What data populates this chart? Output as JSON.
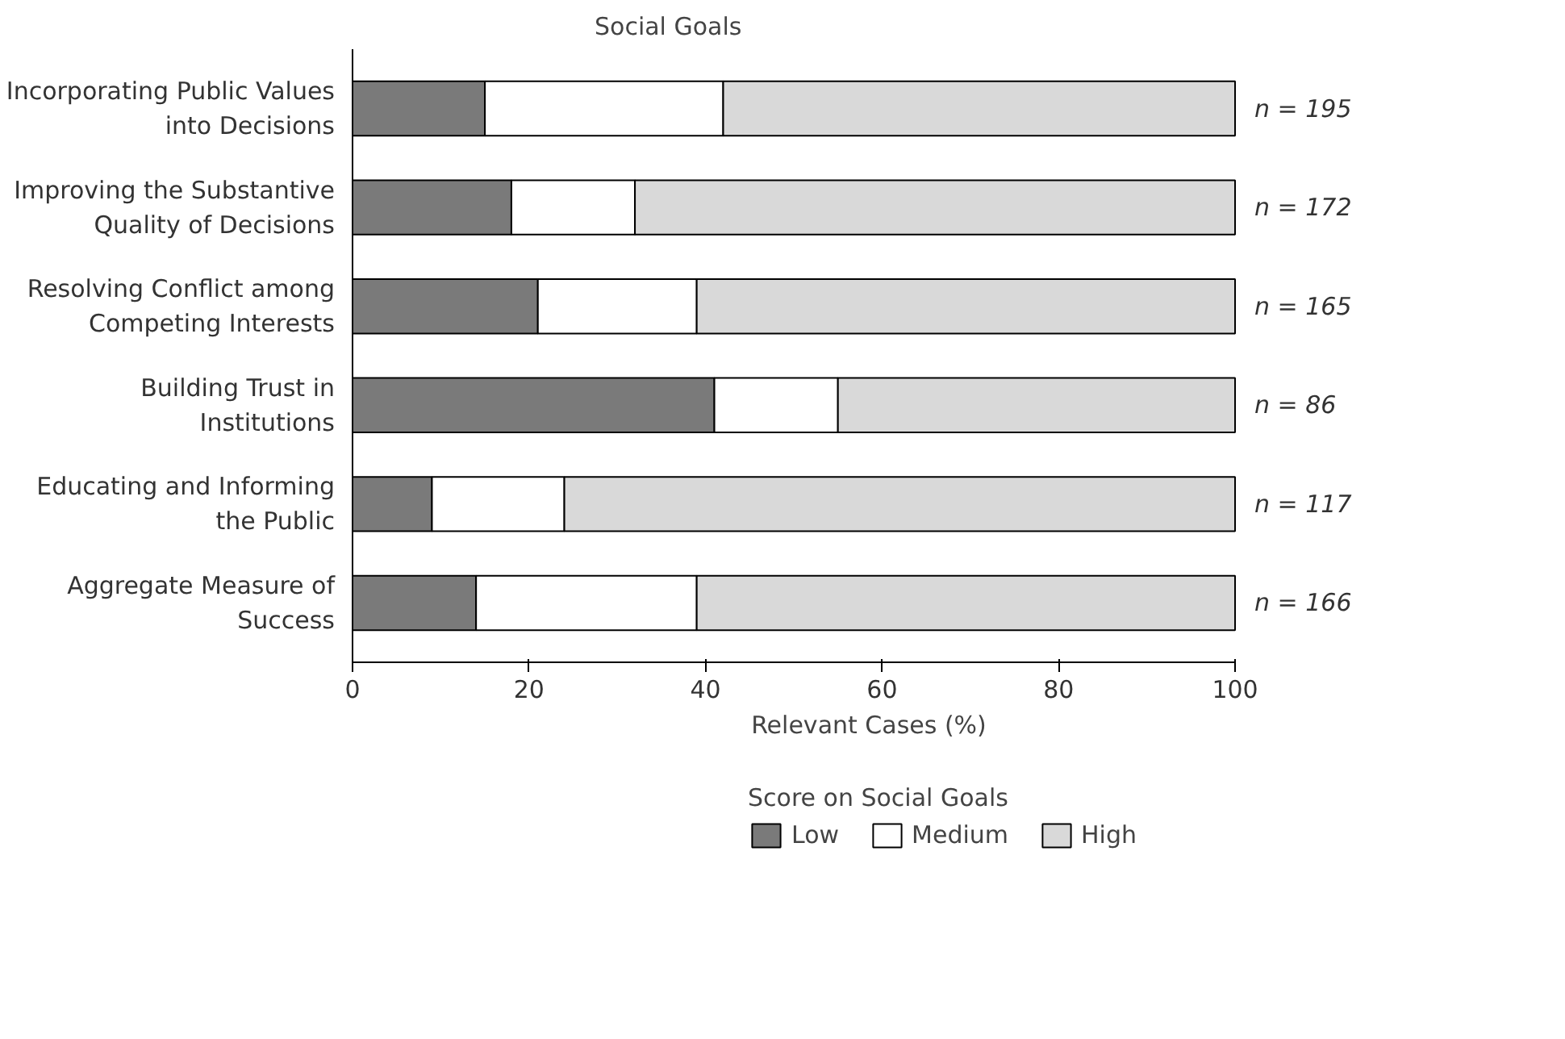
{
  "chart_data": {
    "type": "bar",
    "orientation": "horizontal",
    "stacked": true,
    "ylabel": "Social Goals",
    "xlabel": "Relevant Cases (%)",
    "legend_title": "Score on Social Goals",
    "categories": [
      "Incorporating Public Values\ninto Decisions",
      "Improving the Substantive\nQuality of Decisions",
      "Resolving Conflict among\nCompeting Interests",
      "Building Trust in\nInstitutions",
      "Educating and Informing\nthe Public",
      "Aggregate Measure of\nSuccess"
    ],
    "series": [
      {
        "name": "Low",
        "color": "#7a7a7a",
        "values": [
          15,
          18,
          21,
          41,
          9,
          14
        ]
      },
      {
        "name": "Medium",
        "color": "#ffffff",
        "values": [
          27,
          14,
          18,
          14,
          15,
          25
        ]
      },
      {
        "name": "High",
        "color": "#d9d9d9",
        "values": [
          58,
          68,
          61,
          45,
          76,
          61
        ]
      }
    ],
    "xlim": [
      0,
      100
    ],
    "xticks": [
      0,
      20,
      40,
      60,
      80,
      100
    ],
    "grid": false,
    "legend": "bottom",
    "annotations": [
      "n = 195",
      "n = 172",
      "n = 165",
      "n = 86",
      "n = 117",
      "n = 166"
    ]
  }
}
